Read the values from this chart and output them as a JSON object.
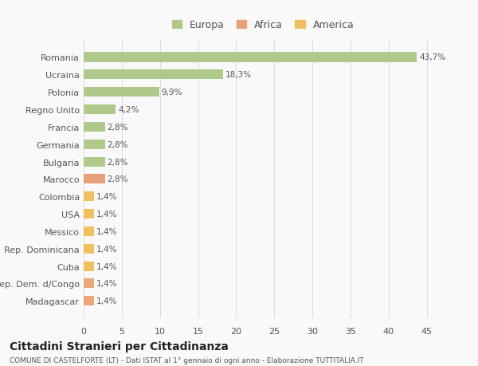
{
  "categories": [
    "Madagascar",
    "Rep. Dem. d/Congo",
    "Cuba",
    "Rep. Dominicana",
    "Messico",
    "USA",
    "Colombia",
    "Marocco",
    "Bulgaria",
    "Germania",
    "Francia",
    "Regno Unito",
    "Polonia",
    "Ucraina",
    "Romania"
  ],
  "values": [
    1.4,
    1.4,
    1.4,
    1.4,
    1.4,
    1.4,
    1.4,
    2.8,
    2.8,
    2.8,
    2.8,
    4.2,
    9.9,
    18.3,
    43.7
  ],
  "labels": [
    "1,4%",
    "1,4%",
    "1,4%",
    "1,4%",
    "1,4%",
    "1,4%",
    "1,4%",
    "2,8%",
    "2,8%",
    "2,8%",
    "2,8%",
    "4,2%",
    "9,9%",
    "18,3%",
    "43,7%"
  ],
  "colors": [
    "#e8a87c",
    "#e8a87c",
    "#f0c060",
    "#f0c060",
    "#f0c060",
    "#f0c060",
    "#f0c060",
    "#e8a07a",
    "#aec98a",
    "#aec98a",
    "#aec98a",
    "#aec98a",
    "#aec98a",
    "#aec98a",
    "#aec98a"
  ],
  "legend_labels": [
    "Europa",
    "Africa",
    "America"
  ],
  "legend_colors": [
    "#aec98a",
    "#e8a07a",
    "#f0c060"
  ],
  "title": "Cittadini Stranieri per Cittadinanza",
  "subtitle": "COMUNE DI CASTELFORTE (LT) - Dati ISTAT al 1° gennaio di ogni anno - Elaborazione TUTTITALIA.IT",
  "xlim": [
    0,
    47
  ],
  "xticks": [
    0,
    5,
    10,
    15,
    20,
    25,
    30,
    35,
    40,
    45
  ],
  "background_color": "#f9f9f9",
  "grid_color": "#dddddd",
  "bar_height": 0.55,
  "text_color": "#555555",
  "label_fontsize": 7.5,
  "ytick_fontsize": 8,
  "xtick_fontsize": 8
}
